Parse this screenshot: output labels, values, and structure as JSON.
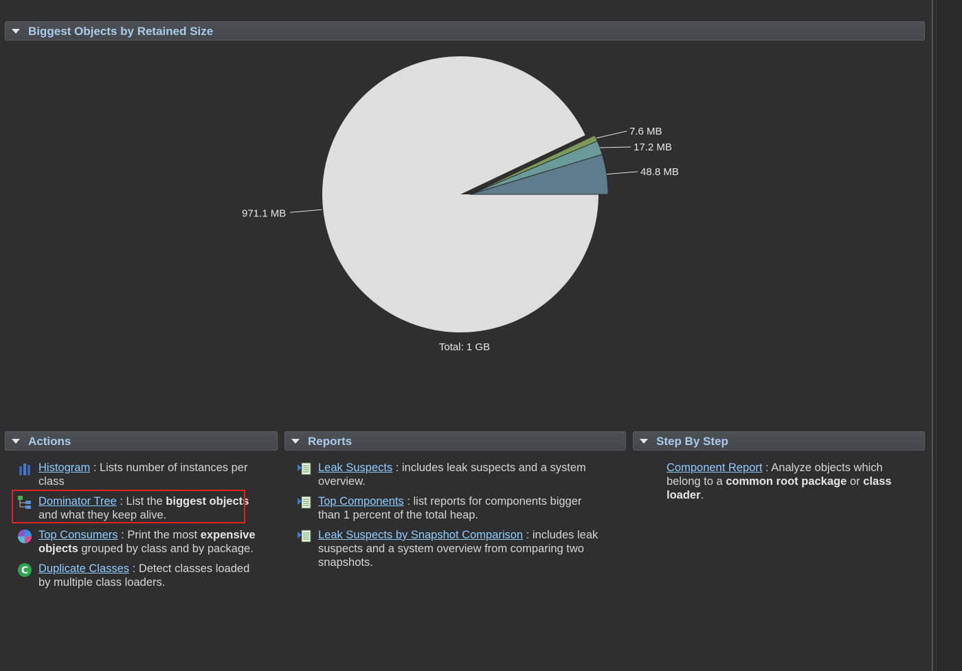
{
  "sections": {
    "biggest_objects": {
      "title": "Biggest Objects by Retained Size"
    },
    "actions": {
      "title": "Actions"
    },
    "reports": {
      "title": "Reports"
    },
    "step_by_step": {
      "title": "Step By Step"
    }
  },
  "chart_data": {
    "type": "pie",
    "slices": [
      {
        "label": "971.1 MB",
        "value": 971.1,
        "color": "#dedede"
      },
      {
        "label": "48.8 MB",
        "value": 48.8,
        "color": "#5e7c8c"
      },
      {
        "label": "17.2 MB",
        "value": 17.2,
        "color": "#6b9a9a"
      },
      {
        "label": "7.6 MB",
        "value": 7.6,
        "color": "#7a9a58"
      }
    ],
    "total_label": "Total: 1 GB"
  },
  "actions": [
    {
      "link": "Histogram",
      "sep": " : ",
      "text_parts": [
        "Lists number of instances per class"
      ]
    },
    {
      "link": "Dominator Tree",
      "sep": " : ",
      "pre": "List the ",
      "bold": "biggest objects",
      "post": " and what they keep alive."
    },
    {
      "link": "Top Consumers",
      "sep": " : ",
      "pre": "Print the most ",
      "bold": "expensive objects",
      "post": " grouped by class and by package."
    },
    {
      "link": "Duplicate Classes",
      "sep": " : ",
      "pre": "Detect classes loaded by multiple class loaders.",
      "bold": "",
      "post": ""
    }
  ],
  "reports": [
    {
      "link": "Leak Suspects",
      "sep": " : ",
      "text": "includes leak suspects and a system overview."
    },
    {
      "link": "Top Components",
      "sep": " : ",
      "text": "list reports for components bigger than 1 percent of the total heap."
    },
    {
      "link": "Leak Suspects by Snapshot Comparison",
      "sep": " : ",
      "text": "includes leak suspects and a system overview from comparing two snapshots."
    }
  ],
  "step_by_step": [
    {
      "link": "Component Report",
      "sep": " : ",
      "pre": "Analyze objects which belong to a ",
      "bold1": "common root package",
      "mid": " or ",
      "bold2": "class loader",
      "post": "."
    }
  ],
  "icons": {
    "histogram": "histogram-icon",
    "dominator": "dominator-tree-icon",
    "consumers": "top-consumers-icon",
    "duplicate": "duplicate-classes-icon",
    "report": "report-icon"
  },
  "highlight_color": "#e0231d"
}
